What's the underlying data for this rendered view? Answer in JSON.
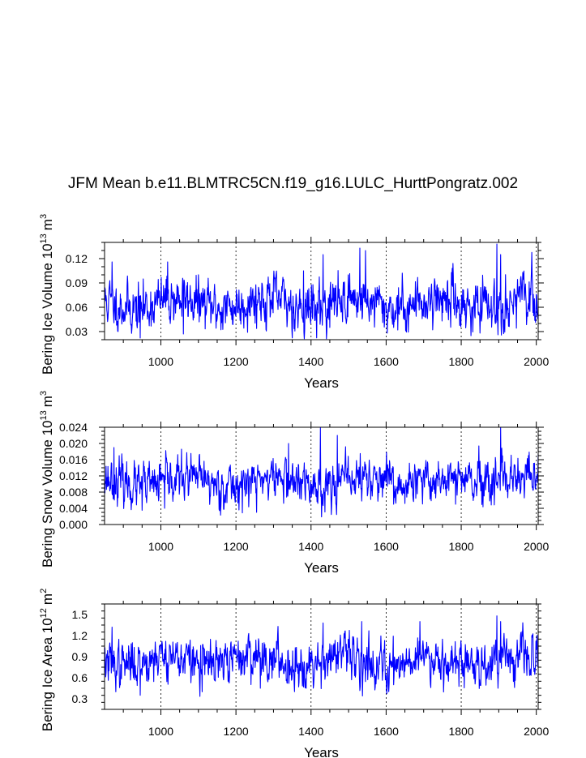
{
  "title": "JFM Mean b.e11.BLMTRC5CN.f19_g16.LULC_HurttPongratz.002",
  "chart_data": [
    {
      "type": "line",
      "name": "ice-volume",
      "ylabel": "Bering Ice Volume 10",
      "ylabel_exp": "13",
      "ylabel_unit": "m",
      "ylabel_unit_exp": "3",
      "xlabel": "Years",
      "xlim": [
        850,
        2005
      ],
      "ylim": [
        0.02,
        0.14
      ],
      "xticks": [
        1000,
        1200,
        1400,
        1600,
        1800,
        2000
      ],
      "xtick_labels": [
        "1000",
        "1200",
        "1400",
        "1600",
        "1800",
        "2000"
      ],
      "yticks": [
        0.03,
        0.06,
        0.09,
        0.12
      ],
      "ytick_labels": [
        "0.03",
        "0.06",
        "0.09",
        "0.12"
      ],
      "y_minor_step": 0.01,
      "color": "#0000ff",
      "series_stats": {
        "mean": 0.065,
        "amplitude": 0.018,
        "seed": 11
      },
      "peaks": [
        [
          870,
          0.116
        ],
        [
          1018,
          0.116
        ],
        [
          1380,
          0.105
        ],
        [
          1432,
          0.125
        ],
        [
          1530,
          0.133
        ],
        [
          1545,
          0.13
        ],
        [
          1895,
          0.138
        ],
        [
          1905,
          0.125
        ]
      ],
      "troughs": [
        [
          945,
          0.022
        ],
        [
          1060,
          0.027
        ],
        [
          1898,
          0.026
        ],
        [
          1450,
          0.035
        ],
        [
          1620,
          0.035
        ]
      ]
    },
    {
      "type": "line",
      "name": "snow-volume",
      "ylabel": "Bering Snow Volume 10",
      "ylabel_exp": "13",
      "ylabel_unit": "m",
      "ylabel_unit_exp": "3",
      "xlabel": "Years",
      "xlim": [
        850,
        2005
      ],
      "ylim": [
        0.0,
        0.024
      ],
      "xticks": [
        1000,
        1200,
        1400,
        1600,
        1800,
        2000
      ],
      "xtick_labels": [
        "1000",
        "1200",
        "1400",
        "1600",
        "1800",
        "2000"
      ],
      "yticks": [
        0.0,
        0.004,
        0.008,
        0.012,
        0.016,
        0.02,
        0.024
      ],
      "ytick_labels": [
        "0.000",
        "0.004",
        "0.008",
        "0.012",
        "0.016",
        "0.020",
        "0.024"
      ],
      "y_minor_step": 0.001,
      "color": "#0000ff",
      "series_stats": {
        "mean": 0.0105,
        "amplitude": 0.0032,
        "seed": 23
      },
      "peaks": [
        [
          875,
          0.019
        ],
        [
          1425,
          0.024
        ],
        [
          1470,
          0.022
        ],
        [
          1905,
          0.024
        ],
        [
          1340,
          0.02
        ]
      ],
      "troughs": [
        [
          950,
          0.0035
        ],
        [
          1010,
          0.004
        ],
        [
          1255,
          0.003
        ],
        [
          1620,
          0.005
        ],
        [
          1785,
          0.005
        ]
      ]
    },
    {
      "type": "line",
      "name": "ice-area",
      "ylabel": "Bering Ice Area 10",
      "ylabel_exp": "12",
      "ylabel_unit": "m",
      "ylabel_unit_exp": "2",
      "xlabel": "Years",
      "xlim": [
        850,
        2005
      ],
      "ylim": [
        0.15,
        1.65
      ],
      "xticks": [
        1000,
        1200,
        1400,
        1600,
        1800,
        2000
      ],
      "xtick_labels": [
        "1000",
        "1200",
        "1400",
        "1600",
        "1800",
        "2000"
      ],
      "yticks": [
        0.3,
        0.6,
        0.9,
        1.2,
        1.5
      ],
      "ytick_labels": [
        "0.3",
        "0.6",
        "0.9",
        "1.2",
        "1.5"
      ],
      "y_minor_step": 0.1,
      "color": "#0000ff",
      "series_stats": {
        "mean": 0.85,
        "amplitude": 0.19,
        "seed": 37
      },
      "peaks": [
        [
          870,
          1.32
        ],
        [
          1432,
          1.38
        ],
        [
          1535,
          1.4
        ],
        [
          1690,
          1.4
        ],
        [
          1895,
          1.48
        ],
        [
          1905,
          1.4
        ]
      ],
      "troughs": [
        [
          945,
          0.35
        ],
        [
          1110,
          0.4
        ],
        [
          1265,
          0.45
        ],
        [
          1898,
          0.45
        ],
        [
          1620,
          0.5
        ]
      ]
    }
  ]
}
